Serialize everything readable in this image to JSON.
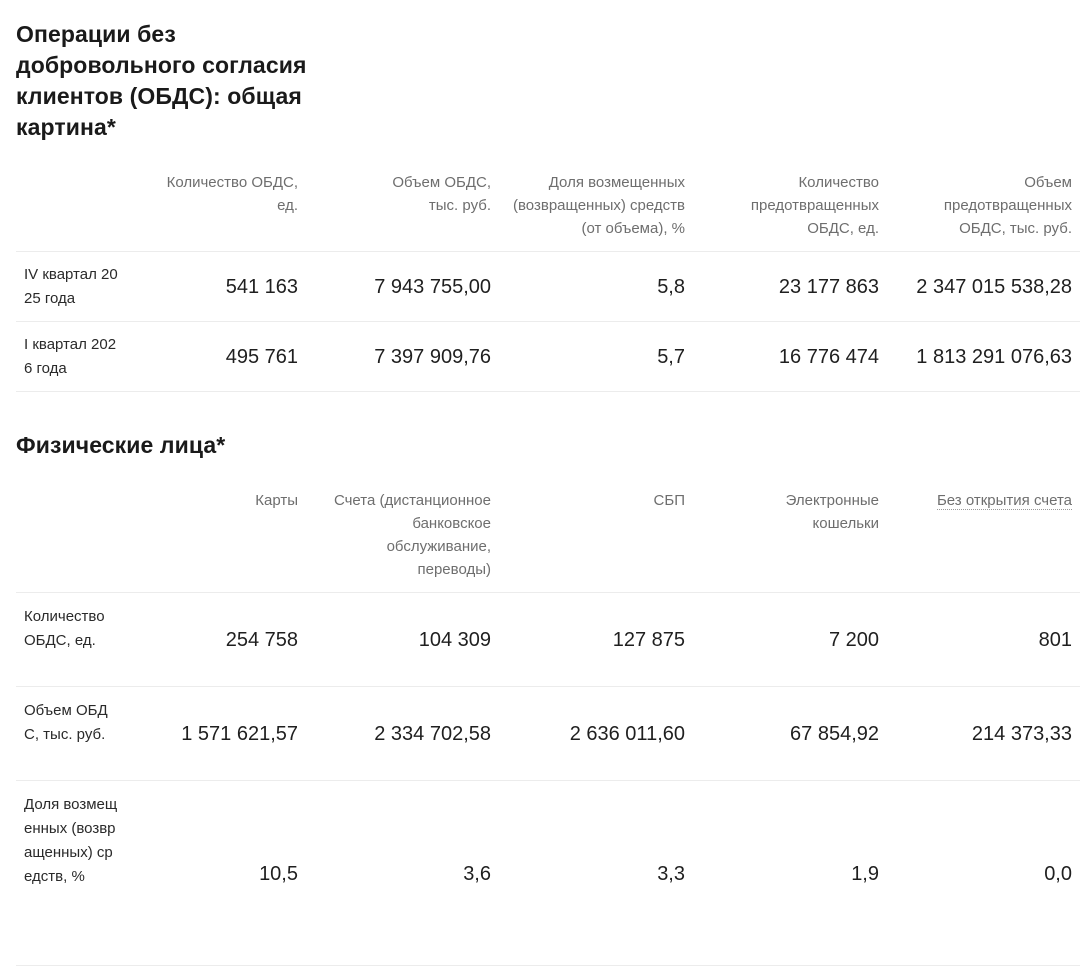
{
  "section1": {
    "title": "Операции без добровольного согласия клиентов (ОБДС): общая картина*",
    "headers": [
      "Количество ОБДС, ед.",
      "Объем ОБДС, тыс. руб.",
      "Доля возмещенных (возвращенных) средств (от объема), %",
      "Количество предотвращенных ОБДС, ед.",
      "Объем предотвращенных ОБДС, тыс. руб."
    ],
    "rows": [
      {
        "label": "IV квартал 2025 года",
        "values": [
          "541 163",
          "7 943 755,00",
          "5,8",
          "23 177 863",
          "2 347 015 538,28"
        ]
      },
      {
        "label": "I квартал 2026 года",
        "values": [
          "495 761",
          "7 397 909,76",
          "5,7",
          "16 776 474",
          "1 813 291 076,63"
        ]
      }
    ]
  },
  "section2": {
    "title": "Физические лица*",
    "headers": [
      "Карты",
      "Счета (дистанционное банковское обслуживание, переводы)",
      "СБП",
      "Электронные кошельки",
      "Без открытия счета"
    ],
    "rows": [
      {
        "label": "Количество ОБДС, ед.",
        "values": [
          "254 758",
          "104 309",
          "127 875",
          "7 200",
          "801"
        ]
      },
      {
        "label": "Объем ОБДС, тыс. руб.",
        "values": [
          "1 571 621,57",
          "2 334 702,58",
          "2 636 011,60",
          "67 854,92",
          "214 373,33"
        ]
      },
      {
        "label": "Доля возмещенных (возвращенных) средств, %",
        "values": [
          "10,5",
          "3,6",
          "3,3",
          "1,9",
          "0,0"
        ]
      }
    ]
  }
}
